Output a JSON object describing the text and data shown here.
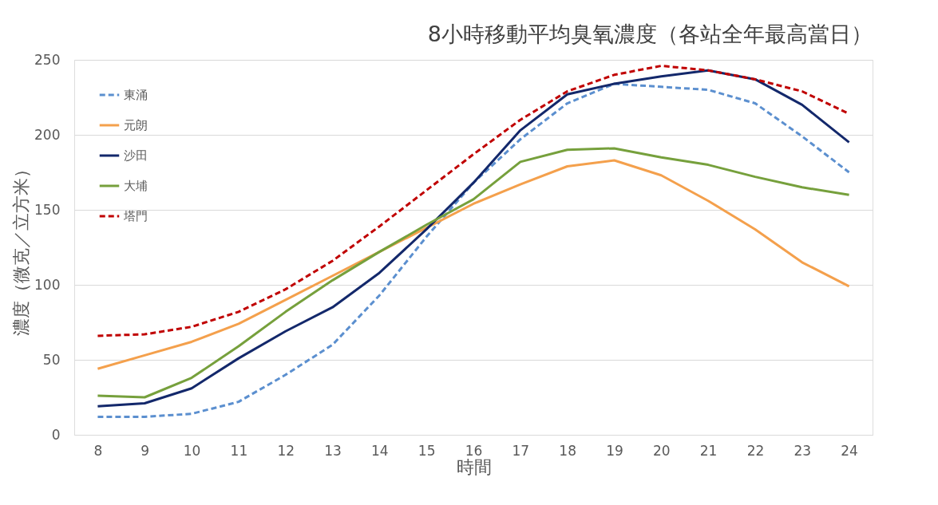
{
  "chart_data": {
    "type": "line",
    "title": "8小時移動平均臭氧濃度（各站全年最高當日）",
    "xlabel": "時間",
    "ylabel": "濃度（微克／立方米）",
    "categories": [
      "8",
      "9",
      "10",
      "11",
      "12",
      "13",
      "14",
      "15",
      "16",
      "17",
      "18",
      "19",
      "20",
      "21",
      "22",
      "23",
      "24"
    ],
    "series": [
      {
        "name": "東涌",
        "color": "#5b8fcf",
        "line_style": "dashed",
        "values": [
          12,
          12,
          14,
          22,
          40,
          60,
          93,
          132,
          168,
          197,
          221,
          234,
          232,
          230,
          221,
          199,
          175
        ]
      },
      {
        "name": "元朗",
        "color": "#f4a04c",
        "line_style": "solid",
        "values": [
          44,
          53,
          62,
          74,
          90,
          106,
          122,
          138,
          154,
          167,
          179,
          183,
          173,
          156,
          137,
          115,
          99
        ]
      },
      {
        "name": "沙田",
        "color": "#13286b",
        "line_style": "solid",
        "values": [
          19,
          21,
          31,
          51,
          69,
          85,
          108,
          137,
          168,
          203,
          227,
          234,
          239,
          243,
          237,
          220,
          195
        ]
      },
      {
        "name": "大埔",
        "color": "#76a03c",
        "line_style": "solid",
        "values": [
          26,
          25,
          38,
          59,
          82,
          103,
          122,
          140,
          157,
          182,
          190,
          191,
          185,
          180,
          172,
          165,
          160
        ]
      },
      {
        "name": "塔門",
        "color": "#c00000",
        "line_style": "dashed",
        "values": [
          66,
          67,
          72,
          82,
          97,
          116,
          139,
          163,
          187,
          210,
          229,
          240,
          246,
          243,
          237,
          229,
          214
        ]
      }
    ],
    "ylim": [
      0,
      250
    ],
    "yticks": [
      0,
      50,
      100,
      150,
      200,
      250
    ],
    "grid": "y",
    "legend": "top left",
    "marker": "none"
  }
}
